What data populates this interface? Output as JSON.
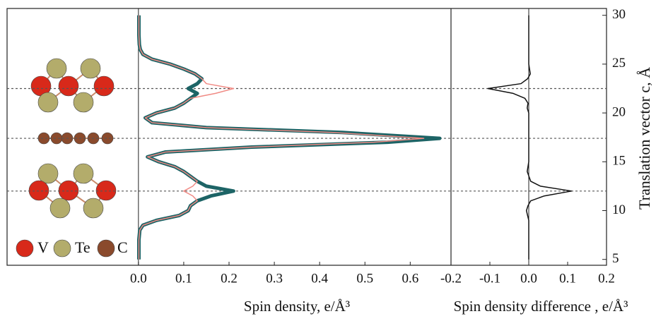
{
  "chart_data": [
    {
      "type": "line",
      "xlabel": "Spin density, e/Å³",
      "xlim": [
        -0.29,
        0.69
      ],
      "xticks": [
        {
          "value": 0,
          "label": "0.0"
        },
        0.1,
        0.2,
        0.3,
        0.4,
        0.5,
        0.6
      ],
      "ylim": [
        4.4,
        30.7
      ],
      "y": [
        5,
        6,
        7,
        8,
        8.5,
        9,
        9.5,
        10,
        10.5,
        11,
        11.5,
        12,
        12.5,
        13,
        13.5,
        14,
        14.5,
        15,
        15.5,
        16,
        16.5,
        17,
        17.4,
        18,
        18.5,
        19,
        19.5,
        20,
        20.5,
        21,
        21.5,
        22,
        22.5,
        23,
        23.5,
        24,
        24.5,
        25,
        25.5,
        26,
        26.5,
        27,
        28,
        29,
        30
      ],
      "series": [
        {
          "color": "#1d6466",
          "values": [
            0.001,
            0.001,
            0.001,
            0.003,
            0.01,
            0.04,
            0.09,
            0.11,
            0.115,
            0.13,
            0.16,
            0.21,
            0.15,
            0.13,
            0.115,
            0.1,
            0.08,
            0.045,
            0.02,
            0.06,
            0.25,
            0.55,
            0.665,
            0.45,
            0.15,
            0.03,
            0.015,
            0.04,
            0.08,
            0.1,
            0.115,
            0.13,
            0.11,
            0.13,
            0.14,
            0.125,
            0.1,
            0.07,
            0.03,
            0.01,
            0.004,
            0.002,
            0.001,
            0.001,
            0.001
          ]
        },
        {
          "color": "#f08a84",
          "values": [
            0.001,
            0.001,
            0.001,
            0.003,
            0.01,
            0.04,
            0.09,
            0.11,
            0.115,
            0.13,
            0.12,
            0.1,
            0.12,
            0.13,
            0.115,
            0.1,
            0.08,
            0.045,
            0.02,
            0.06,
            0.25,
            0.52,
            0.63,
            0.43,
            0.15,
            0.03,
            0.015,
            0.04,
            0.08,
            0.1,
            0.115,
            0.17,
            0.21,
            0.15,
            0.14,
            0.125,
            0.1,
            0.07,
            0.03,
            0.01,
            0.004,
            0.002,
            0.001,
            0.001,
            0.001
          ]
        }
      ],
      "hlines": [
        12.0,
        17.4,
        22.5
      ],
      "atom_legend": [
        {
          "label": "V",
          "color": "#d8291a"
        },
        {
          "label": "Te",
          "color": "#b3ac6b"
        },
        {
          "label": "C",
          "color": "#8a4a2c"
        }
      ]
    },
    {
      "type": "line",
      "xlabel": "Spin density difference , e/Å³",
      "ylabel": "Translation vector c, Å",
      "xlim": [
        -0.2,
        0.2
      ],
      "xticks": [
        -0.2,
        -0.1,
        {
          "value": 0,
          "label": "0.0"
        },
        0.1,
        0.2
      ],
      "ylim": [
        4.4,
        30.7
      ],
      "yticks": [
        5,
        10,
        15,
        20,
        25,
        30
      ],
      "y": [
        5,
        7,
        9,
        9.5,
        10,
        10.5,
        11,
        11.5,
        12,
        12.5,
        13,
        14,
        15,
        17.4,
        20,
        20.5,
        21,
        21.5,
        22,
        22.5,
        23,
        23.5,
        24,
        25,
        27,
        30
      ],
      "series": [
        {
          "color": "#111111",
          "values": [
            0,
            0,
            0,
            -0.003,
            -0.006,
            -0.002,
            0.005,
            0.04,
            0.11,
            0.03,
            0.005,
            -0.004,
            0,
            0,
            0,
            -0.004,
            -0.002,
            -0.01,
            -0.04,
            -0.105,
            -0.02,
            -0.003,
            0.004,
            0,
            0,
            0
          ]
        }
      ]
    }
  ]
}
